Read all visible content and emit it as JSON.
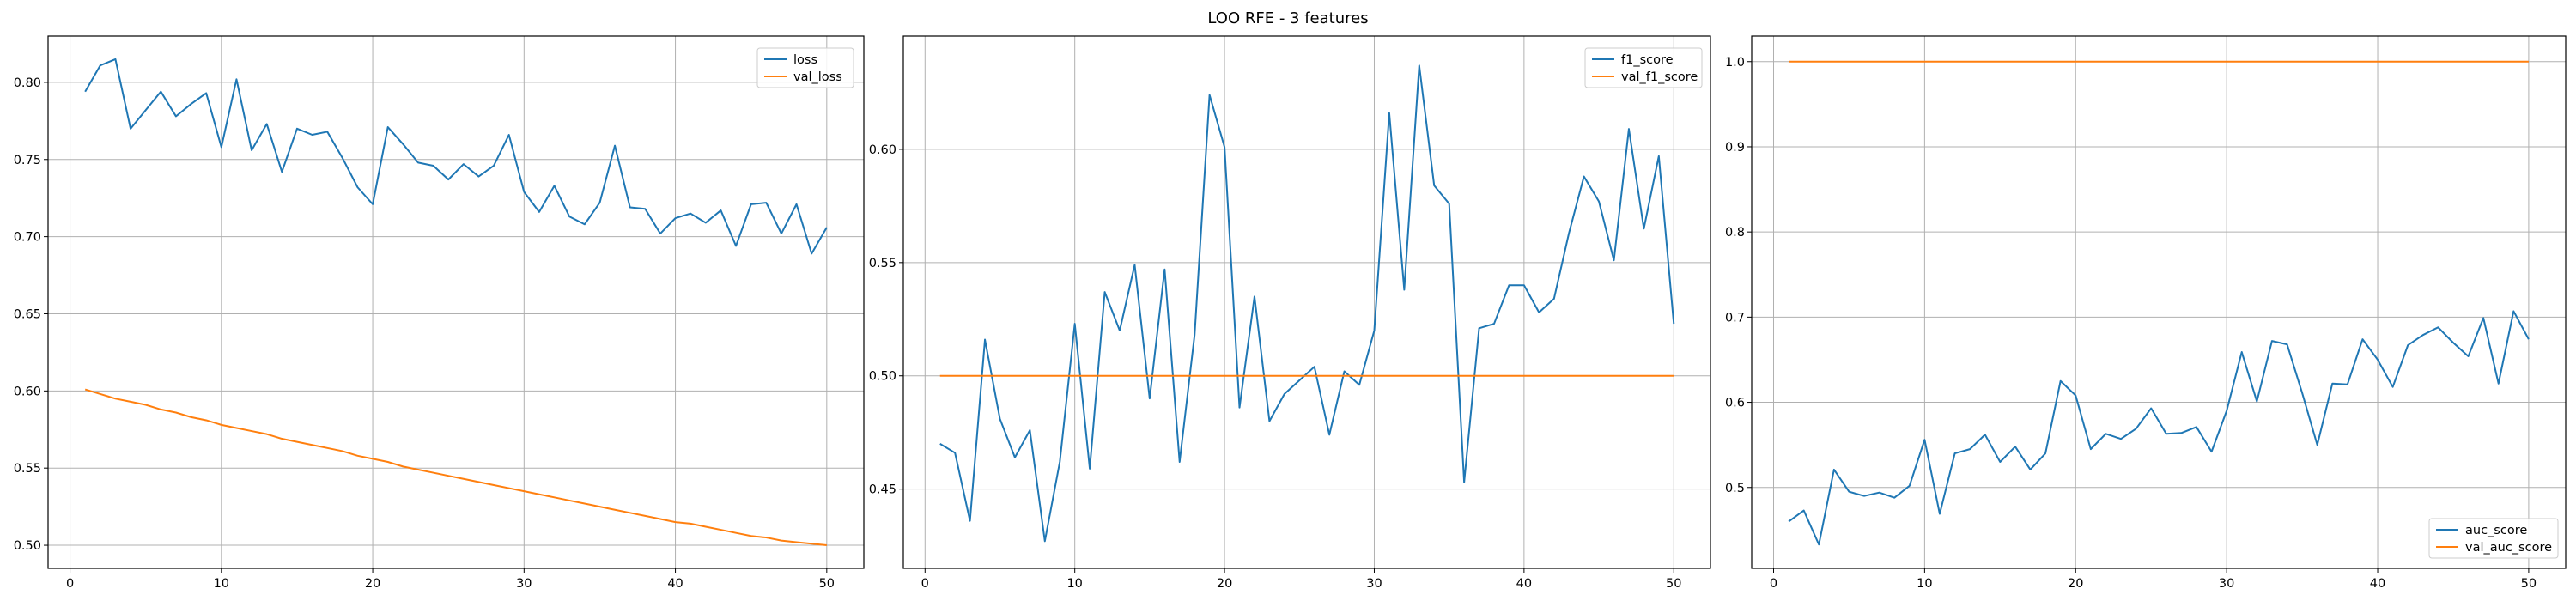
{
  "figure": {
    "title": "LOO RFE - 3 features"
  },
  "chart_data": [
    {
      "type": "line",
      "title": "",
      "xlabel": "",
      "ylabel": "",
      "grid": true,
      "legend_placement": "upper-right",
      "xlim": [
        -1.45,
        52.45
      ],
      "ylim": [
        0.485,
        0.83
      ],
      "xticks": [
        0,
        10,
        20,
        30,
        40,
        50
      ],
      "yticks": [
        0.5,
        0.55,
        0.6,
        0.65,
        0.7,
        0.75,
        0.8
      ],
      "ytick_labels": [
        "0.50",
        "0.55",
        "0.60",
        "0.65",
        "0.70",
        "0.75",
        "0.80"
      ],
      "x": [
        1,
        2,
        3,
        4,
        5,
        6,
        7,
        8,
        9,
        10,
        11,
        12,
        13,
        14,
        15,
        16,
        17,
        18,
        19,
        20,
        21,
        22,
        23,
        24,
        25,
        26,
        27,
        28,
        29,
        30,
        31,
        32,
        33,
        34,
        35,
        36,
        37,
        38,
        39,
        40,
        41,
        42,
        43,
        44,
        45,
        46,
        47,
        48,
        49,
        50
      ],
      "series": [
        {
          "name": "loss",
          "color": "#1f77b4",
          "values": [
            0.794,
            0.811,
            0.815,
            0.77,
            0.782,
            0.794,
            0.778,
            0.786,
            0.793,
            0.758,
            0.802,
            0.756,
            0.773,
            0.742,
            0.77,
            0.766,
            0.768,
            0.751,
            0.732,
            0.721,
            0.771,
            0.76,
            0.748,
            0.746,
            0.737,
            0.747,
            0.739,
            0.746,
            0.766,
            0.729,
            0.716,
            0.733,
            0.713,
            0.708,
            0.722,
            0.759,
            0.719,
            0.718,
            0.702,
            0.712,
            0.715,
            0.709,
            0.717,
            0.694,
            0.721,
            0.722,
            0.702,
            0.721,
            0.689,
            0.706
          ]
        },
        {
          "name": "val_loss",
          "color": "#ff7f0e",
          "values": [
            0.601,
            0.598,
            0.595,
            0.593,
            0.591,
            0.588,
            0.586,
            0.583,
            0.581,
            0.578,
            0.576,
            0.574,
            0.572,
            0.569,
            0.567,
            0.565,
            0.563,
            0.561,
            0.558,
            0.556,
            0.554,
            0.551,
            0.549,
            0.547,
            0.545,
            0.543,
            0.541,
            0.539,
            0.537,
            0.535,
            0.533,
            0.531,
            0.529,
            0.527,
            0.525,
            0.523,
            0.521,
            0.519,
            0.517,
            0.515,
            0.514,
            0.512,
            0.51,
            0.508,
            0.506,
            0.505,
            0.503,
            0.502,
            0.501,
            0.5
          ]
        }
      ]
    },
    {
      "type": "line",
      "title": "",
      "xlabel": "",
      "ylabel": "",
      "grid": true,
      "legend_placement": "upper-right",
      "xlim": [
        -1.45,
        52.45
      ],
      "ylim": [
        0.415,
        0.65
      ],
      "xticks": [
        0,
        10,
        20,
        30,
        40,
        50
      ],
      "yticks": [
        0.45,
        0.5,
        0.55,
        0.6
      ],
      "ytick_labels": [
        "0.45",
        "0.50",
        "0.55",
        "0.60"
      ],
      "x": [
        1,
        2,
        3,
        4,
        5,
        6,
        7,
        8,
        9,
        10,
        11,
        12,
        13,
        14,
        15,
        16,
        17,
        18,
        19,
        20,
        21,
        22,
        23,
        24,
        25,
        26,
        27,
        28,
        29,
        30,
        31,
        32,
        33,
        34,
        35,
        36,
        37,
        38,
        39,
        40,
        41,
        42,
        43,
        44,
        45,
        46,
        47,
        48,
        49,
        50
      ],
      "series": [
        {
          "name": "f1_score",
          "color": "#1f77b4",
          "values": [
            0.47,
            0.466,
            0.436,
            0.516,
            0.481,
            0.464,
            0.476,
            0.427,
            0.462,
            0.523,
            0.459,
            0.537,
            0.52,
            0.549,
            0.49,
            0.547,
            0.462,
            0.518,
            0.624,
            0.601,
            0.486,
            0.535,
            0.48,
            0.492,
            0.498,
            0.504,
            0.474,
            0.502,
            0.496,
            0.52,
            0.616,
            0.538,
            0.637,
            0.584,
            0.576,
            0.453,
            0.521,
            0.523,
            0.54,
            0.54,
            0.528,
            0.534,
            0.563,
            0.588,
            0.577,
            0.551,
            0.609,
            0.565,
            0.597,
            0.523
          ]
        },
        {
          "name": "val_f1_score",
          "color": "#ff7f0e",
          "values": [
            0.5,
            0.5,
            0.5,
            0.5,
            0.5,
            0.5,
            0.5,
            0.5,
            0.5,
            0.5,
            0.5,
            0.5,
            0.5,
            0.5,
            0.5,
            0.5,
            0.5,
            0.5,
            0.5,
            0.5,
            0.5,
            0.5,
            0.5,
            0.5,
            0.5,
            0.5,
            0.5,
            0.5,
            0.5,
            0.5,
            0.5,
            0.5,
            0.5,
            0.5,
            0.5,
            0.5,
            0.5,
            0.5,
            0.5,
            0.5,
            0.5,
            0.5,
            0.5,
            0.5,
            0.5,
            0.5,
            0.5,
            0.5,
            0.5,
            0.5
          ]
        }
      ]
    },
    {
      "type": "line",
      "title": "",
      "xlabel": "",
      "ylabel": "",
      "grid": true,
      "legend_placement": "lower-right",
      "xlim": [
        -1.45,
        52.45
      ],
      "ylim": [
        0.405,
        1.03
      ],
      "xticks": [
        0,
        10,
        20,
        30,
        40,
        50
      ],
      "yticks": [
        0.5,
        0.6,
        0.7,
        0.8,
        0.9,
        1.0
      ],
      "ytick_labels": [
        "0.5",
        "0.6",
        "0.7",
        "0.8",
        "0.9",
        "1.0"
      ],
      "x": [
        1,
        2,
        3,
        4,
        5,
        6,
        7,
        8,
        9,
        10,
        11,
        12,
        13,
        14,
        15,
        16,
        17,
        18,
        19,
        20,
        21,
        22,
        23,
        24,
        25,
        26,
        27,
        28,
        29,
        30,
        31,
        32,
        33,
        34,
        35,
        36,
        37,
        38,
        39,
        40,
        41,
        42,
        43,
        44,
        45,
        46,
        47,
        48,
        49,
        50
      ],
      "series": [
        {
          "name": "auc_score",
          "color": "#1f77b4",
          "values": [
            0.46,
            0.473,
            0.433,
            0.521,
            0.495,
            0.49,
            0.494,
            0.488,
            0.502,
            0.556,
            0.469,
            0.54,
            0.545,
            0.562,
            0.53,
            0.548,
            0.521,
            0.54,
            0.625,
            0.608,
            0.545,
            0.563,
            0.557,
            0.569,
            0.593,
            0.563,
            0.564,
            0.571,
            0.542,
            0.59,
            0.659,
            0.601,
            0.672,
            0.668,
            0.611,
            0.55,
            0.622,
            0.621,
            0.674,
            0.65,
            0.618,
            0.667,
            0.679,
            0.688,
            0.67,
            0.654,
            0.699,
            0.622,
            0.707,
            0.674
          ]
        },
        {
          "name": "val_auc_score",
          "color": "#ff7f0e",
          "values": [
            1.0,
            1.0,
            1.0,
            1.0,
            1.0,
            1.0,
            1.0,
            1.0,
            1.0,
            1.0,
            1.0,
            1.0,
            1.0,
            1.0,
            1.0,
            1.0,
            1.0,
            1.0,
            1.0,
            1.0,
            1.0,
            1.0,
            1.0,
            1.0,
            1.0,
            1.0,
            1.0,
            1.0,
            1.0,
            1.0,
            1.0,
            1.0,
            1.0,
            1.0,
            1.0,
            1.0,
            1.0,
            1.0,
            1.0,
            1.0,
            1.0,
            1.0,
            1.0,
            1.0,
            1.0,
            1.0,
            1.0,
            1.0,
            1.0,
            1.0
          ]
        }
      ]
    }
  ]
}
